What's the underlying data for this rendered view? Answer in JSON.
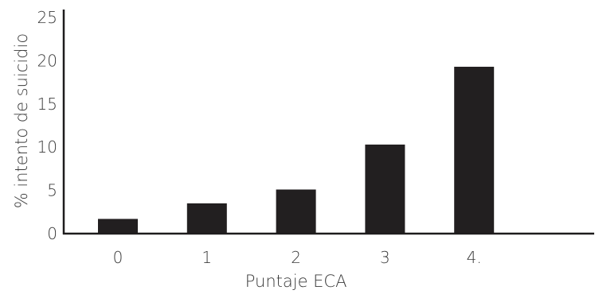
{
  "chart_data": {
    "type": "bar",
    "categories": [
      "0",
      "1",
      "2",
      "3",
      "4."
    ],
    "values": [
      1.7,
      3.5,
      5.1,
      10.3,
      19.3
    ],
    "xlabel": "Puntaje ECA",
    "ylabel": "% intento de suicidio",
    "ylim": [
      0,
      25
    ],
    "yticks": [
      "0",
      "5",
      "10",
      "15",
      "20",
      "25"
    ],
    "grid": false,
    "legend": "none",
    "bar_color": "#221f20"
  }
}
